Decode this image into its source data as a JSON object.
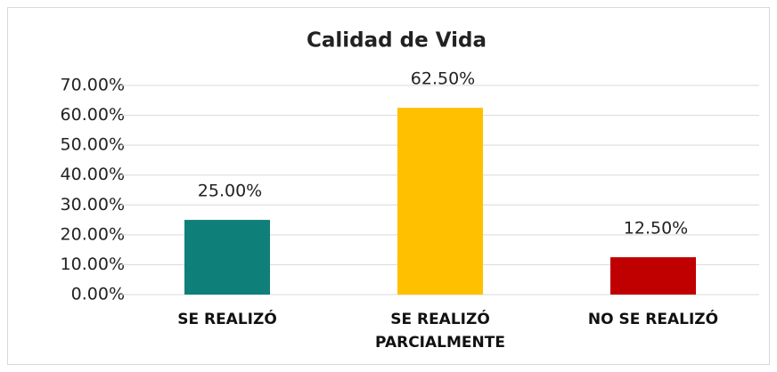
{
  "chart_data": {
    "type": "bar",
    "title": "Calidad de Vida",
    "categories": [
      "SE REALIZÓ",
      "SE REALIZÓ PARCIALMENTE",
      "NO SE REALIZÓ"
    ],
    "values": [
      25,
      62.5,
      12.5
    ],
    "value_labels": [
      "25.00%",
      "62.50%",
      "12.50%"
    ],
    "colors": [
      "#0f7f7a",
      "#ffc000",
      "#c00000"
    ],
    "ylim": [
      0,
      70
    ],
    "yticks": [
      {
        "value": 0,
        "label": "0.00%"
      },
      {
        "value": 10,
        "label": "10.00%"
      },
      {
        "value": 20,
        "label": "20.00%"
      },
      {
        "value": 30,
        "label": "30.00%"
      },
      {
        "value": 40,
        "label": "40.00%"
      },
      {
        "value": 50,
        "label": "50.00%"
      },
      {
        "value": 60,
        "label": "60.00%"
      },
      {
        "value": 70,
        "label": "70.00%"
      }
    ],
    "grid": true
  }
}
